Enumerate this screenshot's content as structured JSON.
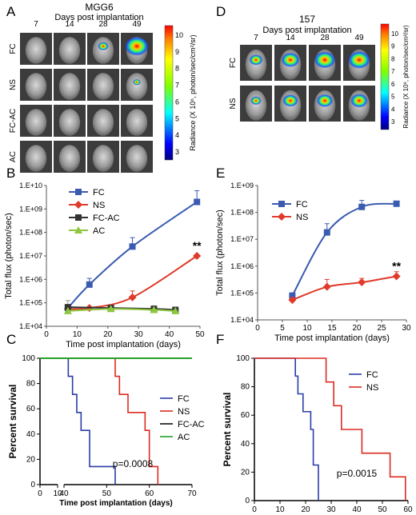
{
  "panel_letters": [
    "A",
    "B",
    "C",
    "D",
    "E",
    "F"
  ],
  "imaging": [
    {
      "title": "MGG6",
      "subtitle": "Days post implantation",
      "days": [
        "7",
        "14",
        "28",
        "49"
      ],
      "rows": [
        "FC",
        "NS",
        "FC-AC",
        "AC"
      ],
      "signal": [
        [
          0,
          0,
          0.3,
          1.0
        ],
        [
          0,
          0,
          0,
          0.15
        ],
        [
          0,
          0,
          0,
          0
        ],
        [
          0,
          0,
          0,
          0
        ]
      ],
      "colorbar": {
        "ticks": [
          "10",
          "9",
          "8",
          "7",
          "6",
          "5",
          "4",
          "3"
        ],
        "label": "Radiance (X 10⁶, photon/sec/cm²/sr)"
      }
    },
    {
      "title": "157",
      "subtitle": "Days post implantation",
      "days": [
        "7",
        "14",
        "28",
        "49"
      ],
      "rows": [
        "FC",
        "NS"
      ],
      "signal": [
        [
          0.45,
          0.7,
          0.85,
          0.9
        ],
        [
          0.3,
          0.55,
          0.6,
          0.65
        ]
      ],
      "colorbar": {
        "ticks": [
          "10",
          "9",
          "8",
          "7",
          "6",
          "5",
          "4",
          "3"
        ],
        "label": "Radiance (X 10⁶, photon/sec/cm²/sr)"
      }
    }
  ],
  "chart_data": [
    {
      "type": "line",
      "panel": "B",
      "xlabel": "Time post implantation (days)",
      "ylabel": "Total flux (photon/sec)",
      "xlim": [
        0,
        50
      ],
      "xticks": [
        "0",
        "10",
        "20",
        "30",
        "40",
        "50"
      ],
      "ylim_log10": [
        4,
        10
      ],
      "yticks": [
        "1.E+04",
        "1.E+05",
        "1.E+06",
        "1.E+07",
        "1.E+08",
        "1.E+09",
        "1.E+10"
      ],
      "annotation": "**",
      "legend_position": "top-left",
      "series": [
        {
          "name": "FC",
          "color": "#3a5bb0",
          "marker": "square",
          "x": [
            7,
            14,
            28,
            49
          ],
          "y": [
            60000,
            600000,
            25000000,
            2000000000
          ],
          "err": [
            0,
            500000,
            35000000,
            4000000000
          ]
        },
        {
          "name": "NS",
          "color": "#e03a2a",
          "marker": "diamond",
          "x": [
            7,
            14,
            28,
            49
          ],
          "y": [
            55000,
            60000,
            170000,
            10000000
          ],
          "err": [
            0,
            0,
            150000,
            0
          ]
        },
        {
          "name": "FC-AC",
          "color": "#333333",
          "marker": "square",
          "x": [
            7,
            21,
            35,
            42
          ],
          "y": [
            65000,
            60000,
            55000,
            50000
          ],
          "err": [
            60000,
            0,
            20000,
            0
          ]
        },
        {
          "name": "AC",
          "color": "#8dc63f",
          "marker": "triangle",
          "x": [
            7,
            21,
            35,
            42
          ],
          "y": [
            45000,
            55000,
            50000,
            45000
          ],
          "err": [
            0,
            0,
            0,
            0
          ]
        }
      ]
    },
    {
      "type": "line",
      "panel": "E",
      "xlabel": "Time post implantation (days)",
      "ylabel": "Total flux (photon/sec)",
      "xlim": [
        0,
        30
      ],
      "xticks": [
        "0",
        "5",
        "10",
        "15",
        "20",
        "25",
        "30"
      ],
      "ylim_log10": [
        4,
        9
      ],
      "yticks": [
        "1.E+04",
        "1.E+05",
        "1.E+06",
        "1.E+07",
        "1.E+08",
        "1.E+09"
      ],
      "annotation": "**",
      "legend_position": "top-left",
      "series": [
        {
          "name": "FC",
          "color": "#3a5bb0",
          "marker": "square",
          "x": [
            7,
            14,
            21,
            28
          ],
          "y": [
            80000,
            18000000,
            160000000,
            210000000
          ],
          "err": [
            0,
            20000000,
            120000000,
            0
          ]
        },
        {
          "name": "NS",
          "color": "#e03a2a",
          "marker": "diamond",
          "x": [
            7,
            14,
            21,
            28
          ],
          "y": [
            55000,
            170000,
            250000,
            420000
          ],
          "err": [
            0,
            150000,
            100000,
            200000
          ]
        }
      ]
    },
    {
      "type": "line",
      "subtype": "kaplan-meier",
      "panel": "C",
      "xlabel": "Time post implantation (days)",
      "ylabel": "Percent survival",
      "xlim": [
        0,
        70
      ],
      "axis_break": [
        10,
        40
      ],
      "xticks": [
        "0",
        "10",
        "40",
        "50",
        "60",
        "70"
      ],
      "ylim": [
        0,
        100
      ],
      "yticks": [
        "0",
        "20",
        "40",
        "60",
        "80",
        "100"
      ],
      "annotation": "p=0.0008",
      "legend_position": "center-right",
      "series": [
        {
          "name": "FC",
          "color": "#2b3da8",
          "times": [
            41,
            42,
            43,
            44,
            46,
            52
          ],
          "surv": [
            85.7,
            71.4,
            57.1,
            42.9,
            14.3,
            0
          ]
        },
        {
          "name": "NS",
          "color": "#dc2b20",
          "times": [
            52,
            53,
            55,
            59,
            60,
            62
          ],
          "surv": [
            85.7,
            71.4,
            57.1,
            42.9,
            14.3,
            0
          ]
        },
        {
          "name": "FC-AC",
          "color": "#111111",
          "times": [],
          "surv": []
        },
        {
          "name": "AC",
          "color": "#28a028",
          "times": [],
          "surv": []
        }
      ]
    },
    {
      "type": "line",
      "subtype": "kaplan-meier",
      "panel": "F",
      "xlabel": "Time post implantation (days)",
      "ylabel": "Percent survival",
      "xlim": [
        0,
        60
      ],
      "xticks": [
        "0",
        "10",
        "20",
        "30",
        "40",
        "50",
        "60"
      ],
      "ylim": [
        0,
        100
      ],
      "yticks": [
        "0",
        "20",
        "40",
        "60",
        "80",
        "100"
      ],
      "annotation": "p=0.0015",
      "legend_position": "top-right",
      "series": [
        {
          "name": "FC",
          "color": "#2b3da8",
          "times": [
            16,
            17,
            19,
            22,
            23,
            25
          ],
          "surv": [
            87.5,
            75,
            62.5,
            50,
            25,
            0
          ]
        },
        {
          "name": "NS",
          "color": "#dc2b20",
          "times": [
            28,
            31,
            34,
            42,
            53,
            59
          ],
          "surv": [
            83.3,
            66.7,
            50,
            33.3,
            16.7,
            0
          ]
        }
      ]
    }
  ]
}
